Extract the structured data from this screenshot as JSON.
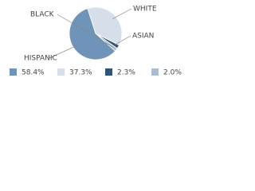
{
  "chart_data": {
    "type": "pie",
    "categories": [
      "HISPANIC",
      "WHITE",
      "ASIAN",
      "BLACK"
    ],
    "values": [
      58.4,
      37.3,
      2.3,
      2.0
    ],
    "value_labels": [
      "58.4%",
      "37.3%",
      "2.3%",
      "2.0%"
    ],
    "colors": [
      "#6f93b9",
      "#d6dfe9",
      "#2e5477",
      "#a9bcd0"
    ]
  }
}
